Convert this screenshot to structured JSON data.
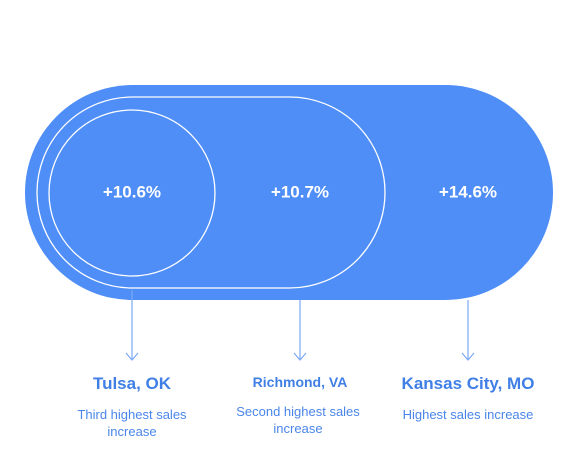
{
  "items": [
    {
      "value": "+10.6%",
      "city": "Tulsa, OK",
      "description": "Third highest sales increase"
    },
    {
      "value": "+10.7%",
      "city": "Richmond, VA",
      "description": "Second highest sales increase"
    },
    {
      "value": "+14.6%",
      "city": "Kansas City, MO",
      "description": "Highest sales increase"
    }
  ]
}
